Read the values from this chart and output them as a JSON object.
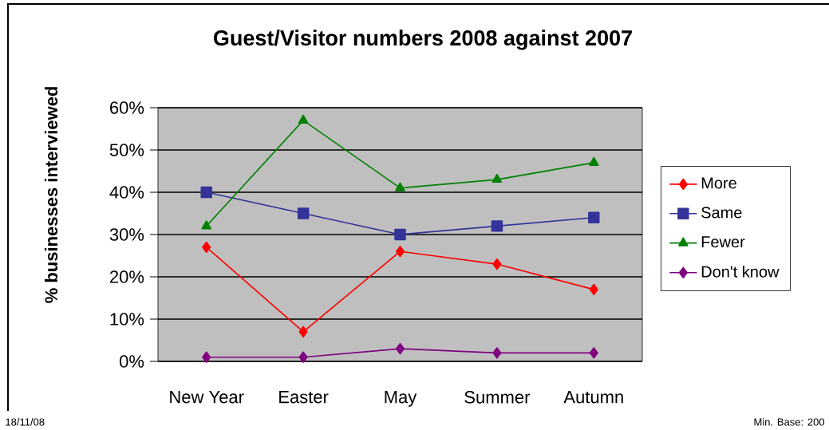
{
  "chart_data": {
    "type": "line",
    "title": "Guest/Visitor numbers 2008 against 2007",
    "ylabel": "% businesses interviewed",
    "categories": [
      "New Year",
      "Easter",
      "May",
      "Summer",
      "Autumn"
    ],
    "series": [
      {
        "name": "More",
        "color": "#ff0000",
        "marker": "diamond",
        "values": [
          27,
          7,
          26,
          23,
          17
        ]
      },
      {
        "name": "Same",
        "color": "#333399",
        "marker": "square",
        "values": [
          40,
          35,
          30,
          32,
          34
        ]
      },
      {
        "name": "Fewer",
        "color": "#008000",
        "marker": "triangle",
        "values": [
          32,
          57,
          41,
          43,
          47
        ]
      },
      {
        "name": "Don't know",
        "color": "#800080",
        "marker": "diamond",
        "values": [
          1,
          1,
          3,
          2,
          2
        ]
      }
    ],
    "ylim": [
      0,
      60
    ],
    "yticks": [
      {
        "value": 0,
        "label": "0%"
      },
      {
        "value": 10,
        "label": "10%"
      },
      {
        "value": 20,
        "label": "20%"
      },
      {
        "value": 30,
        "label": "30%"
      },
      {
        "value": 40,
        "label": "40%"
      },
      {
        "value": 50,
        "label": "50%"
      },
      {
        "value": 60,
        "label": "60%"
      }
    ],
    "grid": "y",
    "legend": "right",
    "line_style": "solid",
    "annotations": [
      "18/11/08",
      "Min. Base: 200"
    ]
  }
}
